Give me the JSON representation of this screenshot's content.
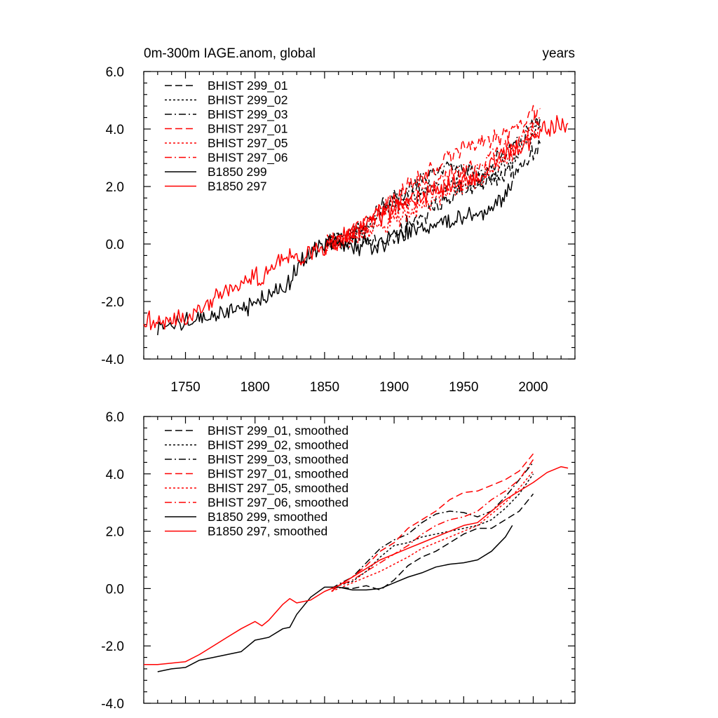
{
  "chart_data": [
    {
      "type": "line",
      "title_left": "0m-300m IAGE.anom, global",
      "title_right": "years",
      "xlim": [
        1720,
        2030
      ],
      "ylim": [
        -4.0,
        6.0
      ],
      "x_major_ticks": [
        1750,
        1800,
        1850,
        1900,
        1950,
        2000
      ],
      "x_minor_step": 10,
      "x_tick_labels_shown": true,
      "y_major_ticks": [
        -4.0,
        -2.0,
        0.0,
        2.0,
        4.0,
        6.0
      ],
      "y_tick_labels": [
        "-4.0",
        "-2.0",
        "0.0",
        "2.0",
        "4.0",
        "6.0"
      ],
      "y_minor_step": 0.4,
      "grid": false,
      "legend_placement": "top-left",
      "noisy": true,
      "series": [
        {
          "name": "BHIST 299_01",
          "color": "#000000",
          "dash": "dash",
          "x": [
            1850,
            1860,
            1870,
            1880,
            1890,
            1900,
            1910,
            1920,
            1930,
            1940,
            1950,
            1960,
            1970,
            1980,
            1990,
            2000,
            2005
          ],
          "y": [
            0.0,
            0.1,
            0.0,
            0.1,
            0.0,
            0.3,
            0.7,
            1.0,
            1.3,
            1.6,
            1.9,
            2.1,
            2.2,
            2.4,
            2.7,
            3.2,
            3.5
          ]
        },
        {
          "name": "BHIST 299_02",
          "color": "#000000",
          "dash": "dot",
          "x": [
            1850,
            1860,
            1870,
            1880,
            1890,
            1900,
            1910,
            1920,
            1930,
            1940,
            1950,
            1960,
            1970,
            1980,
            1990,
            2000,
            2005
          ],
          "y": [
            0.0,
            0.2,
            0.3,
            0.6,
            1.0,
            1.4,
            1.6,
            1.8,
            1.9,
            2.0,
            2.1,
            2.2,
            2.4,
            2.7,
            3.2,
            3.8,
            4.1
          ]
        },
        {
          "name": "BHIST 299_03",
          "color": "#000000",
          "dash": "dashdot",
          "x": [
            1850,
            1860,
            1870,
            1880,
            1890,
            1900,
            1910,
            1920,
            1930,
            1940,
            1950,
            1960,
            1970,
            1980,
            1990,
            2000,
            2005
          ],
          "y": [
            0.0,
            0.2,
            0.4,
            0.8,
            1.2,
            1.6,
            1.9,
            2.2,
            2.5,
            2.7,
            2.6,
            2.5,
            2.7,
            3.1,
            3.6,
            4.1,
            4.4
          ]
        },
        {
          "name": "BHIST 297_01",
          "color": "#ff0000",
          "dash": "dash",
          "x": [
            1850,
            1860,
            1870,
            1880,
            1890,
            1900,
            1910,
            1920,
            1930,
            1940,
            1950,
            1960,
            1970,
            1980,
            1990,
            2000,
            2005
          ],
          "y": [
            -0.1,
            0.1,
            0.4,
            0.8,
            1.2,
            1.5,
            2.0,
            2.3,
            2.6,
            3.0,
            3.4,
            3.5,
            3.6,
            3.8,
            4.1,
            4.5,
            4.7
          ]
        },
        {
          "name": "BHIST 297_05",
          "color": "#ff0000",
          "dash": "dot",
          "x": [
            1850,
            1860,
            1870,
            1880,
            1890,
            1900,
            1910,
            1920,
            1930,
            1940,
            1950,
            1960,
            1970,
            1980,
            1990,
            2000,
            2005
          ],
          "y": [
            -0.1,
            0.0,
            0.2,
            0.4,
            0.6,
            0.8,
            1.0,
            1.3,
            1.6,
            1.8,
            2.0,
            2.2,
            2.6,
            3.0,
            3.4,
            3.9,
            4.1
          ]
        },
        {
          "name": "BHIST 297_06",
          "color": "#ff0000",
          "dash": "dashdot",
          "x": [
            1850,
            1860,
            1870,
            1880,
            1890,
            1900,
            1910,
            1920,
            1930,
            1940,
            1950,
            1960,
            1970,
            1980,
            1990,
            2000,
            2005
          ],
          "y": [
            -0.1,
            0.1,
            0.3,
            0.6,
            0.9,
            1.2,
            1.5,
            1.9,
            2.2,
            2.4,
            2.5,
            2.7,
            3.0,
            3.3,
            3.6,
            4.2,
            4.5
          ]
        },
        {
          "name": "B1850 299",
          "color": "#000000",
          "dash": "solid",
          "x": [
            1730,
            1740,
            1750,
            1760,
            1770,
            1780,
            1790,
            1800,
            1810,
            1820,
            1825,
            1830,
            1840,
            1850,
            1860,
            1870,
            1880,
            1890,
            1900,
            1910,
            1920,
            1930,
            1940,
            1950,
            1960,
            1970,
            1980,
            1985
          ],
          "y": [
            -2.9,
            -2.8,
            -2.75,
            -2.55,
            -2.4,
            -2.3,
            -2.3,
            -2.0,
            -1.75,
            -1.5,
            -1.3,
            -0.9,
            -0.3,
            0.0,
            0.05,
            -0.05,
            -0.1,
            0.0,
            0.2,
            0.4,
            0.5,
            0.7,
            0.8,
            0.9,
            1.0,
            1.3,
            1.8,
            2.2
          ]
        },
        {
          "name": "B1850 297",
          "color": "#ff0000",
          "dash": "solid",
          "x": [
            1720,
            1730,
            1740,
            1750,
            1760,
            1770,
            1780,
            1790,
            1800,
            1805,
            1810,
            1820,
            1825,
            1830,
            1840,
            1850,
            1860,
            1870,
            1880,
            1890,
            1900,
            1910,
            1920,
            1930,
            1940,
            1950,
            1960,
            1970,
            1980,
            1990,
            2000,
            2010,
            2020,
            2025
          ],
          "y": [
            -2.65,
            -2.65,
            -2.6,
            -2.55,
            -2.3,
            -2.0,
            -1.7,
            -1.4,
            -1.1,
            -1.2,
            -1.0,
            -0.5,
            -0.35,
            -0.5,
            -0.4,
            -0.1,
            0.1,
            0.4,
            0.7,
            1.0,
            1.2,
            1.4,
            1.6,
            1.8,
            2.0,
            2.2,
            2.3,
            2.7,
            3.1,
            3.4,
            3.7,
            4.0,
            4.25,
            4.2
          ]
        }
      ]
    },
    {
      "type": "line",
      "title_left": "",
      "title_right": "",
      "xlim": [
        1720,
        2030
      ],
      "ylim": [
        -4.0,
        6.0
      ],
      "x_major_ticks": [
        1750,
        1800,
        1850,
        1900,
        1950,
        2000
      ],
      "x_minor_step": 10,
      "x_tick_labels_shown": false,
      "y_major_ticks": [
        -4.0,
        -2.0,
        0.0,
        2.0,
        4.0,
        6.0
      ],
      "y_tick_labels": [
        "-4.0",
        "-2.0",
        "0.0",
        "2.0",
        "4.0",
        "6.0"
      ],
      "y_minor_step": 0.4,
      "grid": false,
      "legend_placement": "top-left",
      "noisy": false,
      "series": [
        {
          "name": "BHIST 299_01, smoothed",
          "color": "#000000",
          "dash": "dash",
          "x": [
            1855,
            1860,
            1870,
            1880,
            1890,
            1900,
            1910,
            1920,
            1930,
            1940,
            1950,
            1960,
            1970,
            1980,
            1990,
            2000
          ],
          "y": [
            0.0,
            0.05,
            0.0,
            0.1,
            -0.05,
            0.3,
            0.8,
            1.1,
            1.3,
            1.6,
            1.9,
            2.1,
            2.1,
            2.4,
            2.7,
            3.3
          ]
        },
        {
          "name": "BHIST 299_02, smoothed",
          "color": "#000000",
          "dash": "dot",
          "x": [
            1855,
            1860,
            1870,
            1880,
            1890,
            1900,
            1910,
            1920,
            1930,
            1940,
            1950,
            1960,
            1970,
            1980,
            1990,
            2000
          ],
          "y": [
            0.0,
            0.1,
            0.25,
            0.6,
            1.1,
            1.5,
            1.6,
            1.8,
            1.9,
            2.0,
            2.1,
            2.2,
            2.4,
            2.8,
            3.3,
            4.0
          ]
        },
        {
          "name": "BHIST 299_03, smoothed",
          "color": "#000000",
          "dash": "dashdot",
          "x": [
            1855,
            1860,
            1870,
            1880,
            1890,
            1900,
            1910,
            1920,
            1930,
            1940,
            1950,
            1960,
            1970,
            1980,
            1990,
            2000
          ],
          "y": [
            0.0,
            0.15,
            0.4,
            0.9,
            1.4,
            1.7,
            1.9,
            2.3,
            2.6,
            2.7,
            2.65,
            2.5,
            2.7,
            3.2,
            3.8,
            4.4
          ]
        },
        {
          "name": "BHIST 297_01, smoothed",
          "color": "#ff0000",
          "dash": "dash",
          "x": [
            1855,
            1860,
            1870,
            1880,
            1890,
            1900,
            1910,
            1920,
            1930,
            1940,
            1950,
            1960,
            1970,
            1980,
            1990,
            2000
          ],
          "y": [
            -0.1,
            0.1,
            0.4,
            0.8,
            1.3,
            1.6,
            2.1,
            2.4,
            2.7,
            3.1,
            3.35,
            3.4,
            3.6,
            3.8,
            4.1,
            4.7
          ]
        },
        {
          "name": "BHIST 297_05, smoothed",
          "color": "#ff0000",
          "dash": "dot",
          "x": [
            1855,
            1860,
            1870,
            1880,
            1890,
            1900,
            1910,
            1920,
            1930,
            1940,
            1950,
            1960,
            1970,
            1980,
            1990,
            2000
          ],
          "y": [
            -0.1,
            0.0,
            0.2,
            0.4,
            0.6,
            0.85,
            1.1,
            1.4,
            1.6,
            1.8,
            2.0,
            2.2,
            2.6,
            3.0,
            3.5,
            4.1
          ]
        },
        {
          "name": "BHIST 297_06, smoothed",
          "color": "#ff0000",
          "dash": "dashdot",
          "x": [
            1855,
            1860,
            1870,
            1880,
            1890,
            1900,
            1910,
            1920,
            1930,
            1940,
            1950,
            1960,
            1970,
            1980,
            1990,
            2000
          ],
          "y": [
            -0.1,
            0.1,
            0.3,
            0.6,
            0.9,
            1.2,
            1.5,
            1.9,
            2.2,
            2.4,
            2.5,
            2.7,
            3.1,
            3.4,
            3.8,
            4.5
          ]
        },
        {
          "name": "B1850 299, smoothed",
          "color": "#000000",
          "dash": "solid",
          "x": [
            1730,
            1740,
            1750,
            1760,
            1770,
            1780,
            1790,
            1800,
            1810,
            1820,
            1825,
            1830,
            1840,
            1850,
            1860,
            1870,
            1880,
            1890,
            1900,
            1910,
            1920,
            1930,
            1940,
            1950,
            1960,
            1970,
            1980,
            1985
          ],
          "y": [
            -2.9,
            -2.8,
            -2.75,
            -2.5,
            -2.4,
            -2.3,
            -2.2,
            -1.8,
            -1.7,
            -1.4,
            -1.35,
            -0.9,
            -0.3,
            0.05,
            0.05,
            -0.05,
            -0.05,
            0.0,
            0.2,
            0.4,
            0.55,
            0.75,
            0.85,
            0.9,
            1.0,
            1.3,
            1.8,
            2.2
          ]
        },
        {
          "name": "B1850 297, smoothed",
          "color": "#ff0000",
          "dash": "solid",
          "x": [
            1720,
            1730,
            1740,
            1750,
            1760,
            1770,
            1780,
            1790,
            1800,
            1805,
            1810,
            1820,
            1825,
            1830,
            1840,
            1850,
            1860,
            1870,
            1880,
            1890,
            1900,
            1910,
            1920,
            1930,
            1940,
            1950,
            1960,
            1970,
            1980,
            1990,
            2000,
            2010,
            2020,
            2025
          ],
          "y": [
            -2.65,
            -2.65,
            -2.6,
            -2.55,
            -2.3,
            -2.0,
            -1.7,
            -1.4,
            -1.15,
            -1.3,
            -1.1,
            -0.55,
            -0.35,
            -0.5,
            -0.4,
            -0.1,
            0.1,
            0.4,
            0.7,
            1.0,
            1.2,
            1.4,
            1.6,
            1.8,
            2.0,
            2.2,
            2.3,
            2.7,
            3.1,
            3.4,
            3.7,
            4.05,
            4.25,
            4.2
          ]
        }
      ]
    }
  ]
}
